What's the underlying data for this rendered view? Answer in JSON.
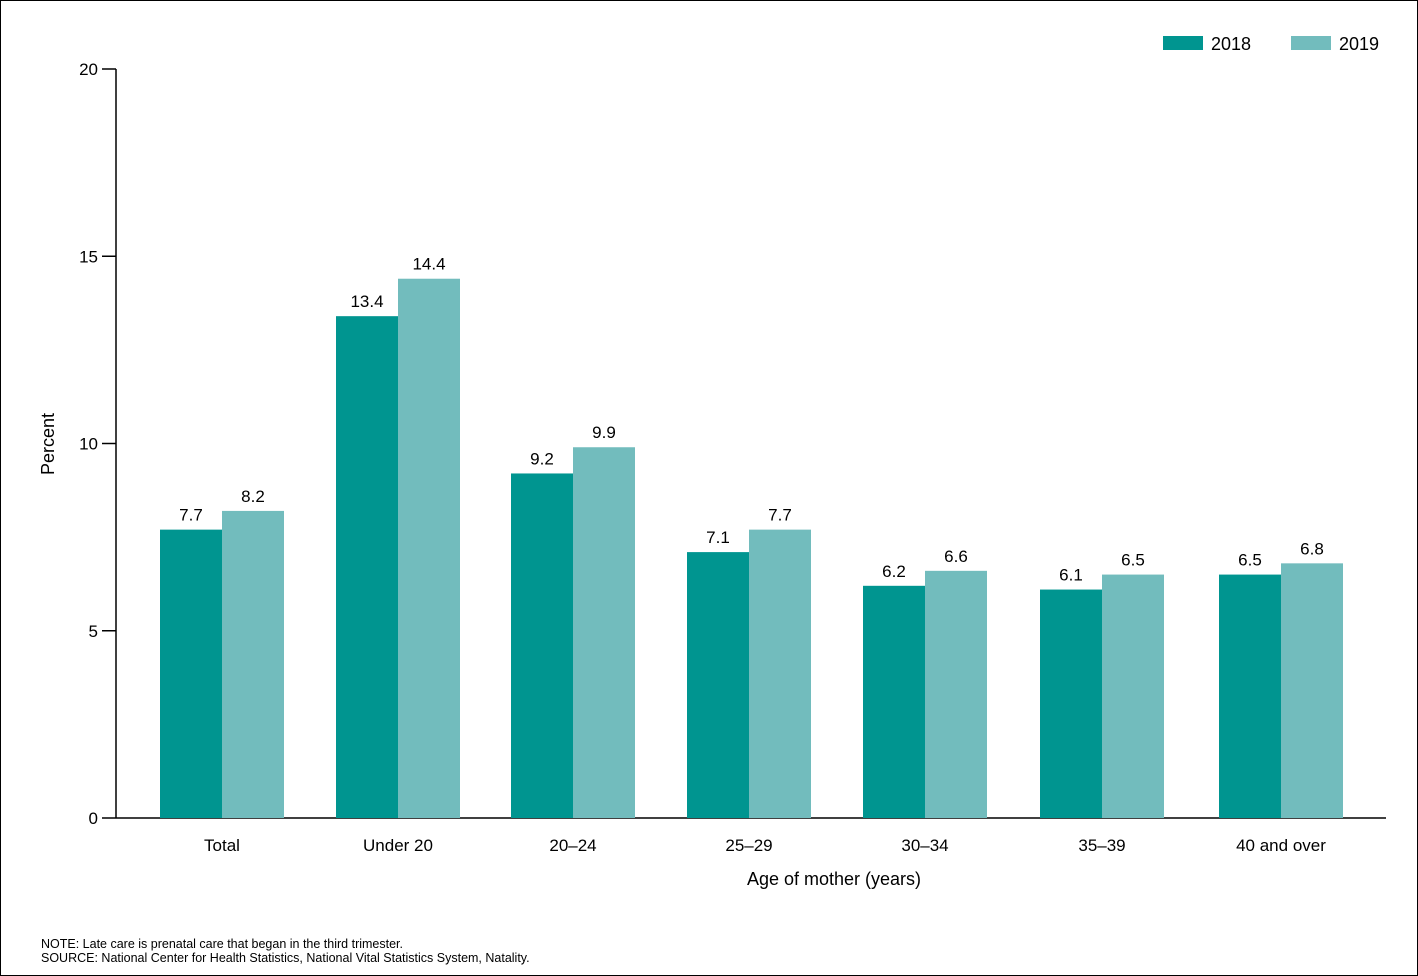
{
  "chart_data": {
    "type": "bar",
    "title": "",
    "xlabel": "Age of mother (years)",
    "ylabel": "Percent",
    "categories": [
      "Total",
      "Under 20",
      "20–24",
      "25–29",
      "30–34",
      "35–39",
      "40 and over"
    ],
    "series": [
      {
        "name": "2018",
        "color": "#009590",
        "values": [
          7.7,
          13.4,
          9.2,
          7.1,
          6.2,
          6.1,
          6.5
        ]
      },
      {
        "name": "2019",
        "color": "#72bcbd",
        "values": [
          8.2,
          14.4,
          9.9,
          7.7,
          6.6,
          6.5,
          6.8
        ]
      }
    ],
    "ylim": [
      0,
      20
    ],
    "yticks": [
      0,
      5,
      10,
      15,
      20
    ],
    "grid": false,
    "legend_position": "top-right"
  },
  "notes": {
    "note": "NOTE: Late care is prenatal care that began in the third trimester.",
    "source": "SOURCE: National Center for Health Statistics, National Vital Statistics System, Natality."
  }
}
